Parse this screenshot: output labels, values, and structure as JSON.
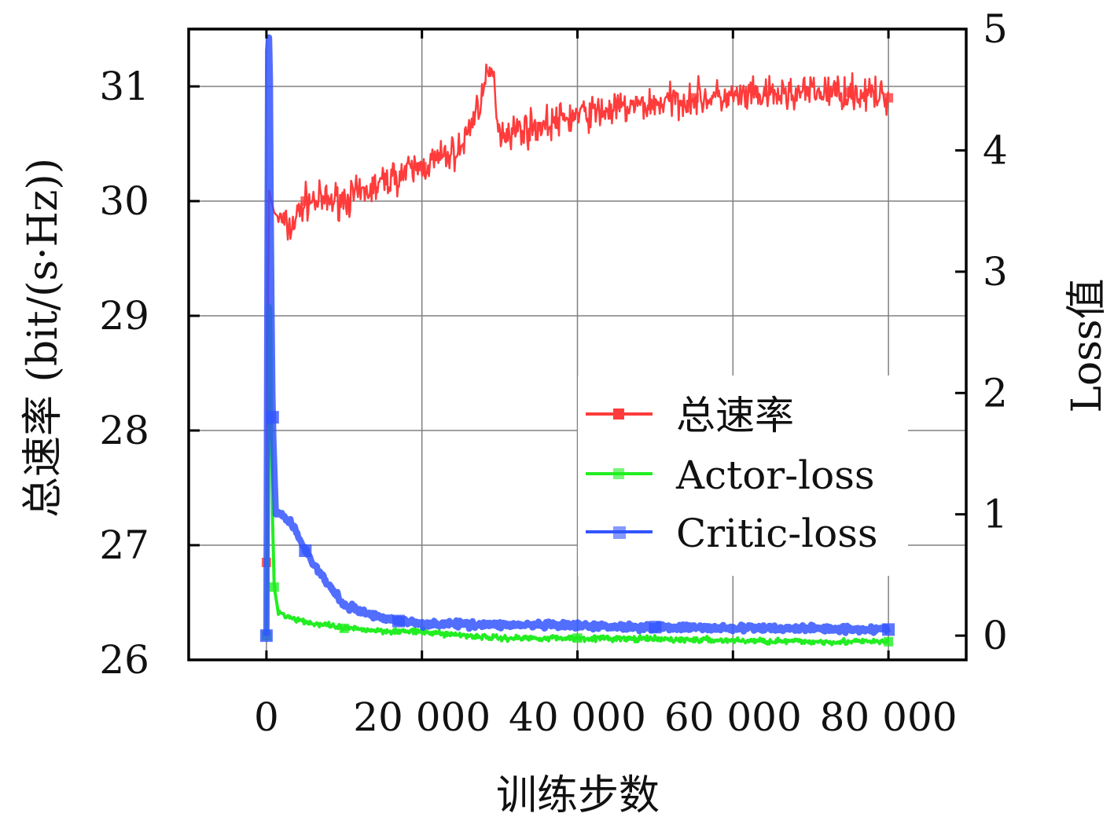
{
  "chart_data": {
    "type": "line",
    "xlabel": "训练步数",
    "ylabel_left": "总速率 (bit/(s·Hz))",
    "ylabel_right": "Loss值",
    "xlim": [
      -10000,
      90000
    ],
    "ylim_left": [
      26,
      31.5
    ],
    "ylim_right": [
      -0.2,
      5
    ],
    "x_ticks": [
      0,
      20000,
      40000,
      60000,
      80000
    ],
    "x_tick_labels": [
      "0",
      "20 000",
      "40 000",
      "60 000",
      "80 000"
    ],
    "y_ticks_left": [
      26,
      27,
      28,
      29,
      30,
      31
    ],
    "y_ticks_right": [
      0,
      1,
      2,
      3,
      4,
      5
    ],
    "grid": true,
    "legend_position": "center-right",
    "series": [
      {
        "name": "总速率",
        "axis": "left",
        "color": "#ff3b3b",
        "marker": "square",
        "points": [
          [
            0,
            26.85
          ],
          [
            300,
            30.1
          ],
          [
            1000,
            29.9
          ],
          [
            3000,
            29.75
          ],
          [
            5000,
            30.0
          ],
          [
            8000,
            30.0
          ],
          [
            12000,
            30.05
          ],
          [
            16000,
            30.2
          ],
          [
            20000,
            30.3
          ],
          [
            25000,
            30.45
          ],
          [
            29000,
            31.15
          ],
          [
            30000,
            30.6
          ],
          [
            35000,
            30.65
          ],
          [
            40000,
            30.75
          ],
          [
            45000,
            30.8
          ],
          [
            50000,
            30.85
          ],
          [
            55000,
            30.9
          ],
          [
            60000,
            30.9
          ],
          [
            65000,
            30.92
          ],
          [
            70000,
            30.95
          ],
          [
            75000,
            30.95
          ],
          [
            80000,
            30.9
          ]
        ]
      },
      {
        "name": "Actor-loss",
        "axis": "right",
        "color": "#22ee22",
        "marker": "square",
        "points": [
          [
            0,
            0.0
          ],
          [
            300,
            1.6
          ],
          [
            500,
            3.2
          ],
          [
            700,
            1.2
          ],
          [
            1000,
            0.4
          ],
          [
            1500,
            0.2
          ],
          [
            3000,
            0.15
          ],
          [
            6000,
            0.1
          ],
          [
            10000,
            0.06
          ],
          [
            15000,
            0.04
          ],
          [
            20000,
            0.03
          ],
          [
            30000,
            -0.02
          ],
          [
            40000,
            -0.02
          ],
          [
            50000,
            -0.03
          ],
          [
            60000,
            -0.04
          ],
          [
            70000,
            -0.05
          ],
          [
            80000,
            -0.05
          ]
        ]
      },
      {
        "name": "Critic-loss",
        "axis": "right",
        "color": "#3355ff",
        "marker": "square",
        "points": [
          [
            0,
            0.0
          ],
          [
            200,
            4.8
          ],
          [
            400,
            5.0
          ],
          [
            600,
            3.0
          ],
          [
            800,
            1.8
          ],
          [
            1200,
            1.0
          ],
          [
            2000,
            1.0
          ],
          [
            3500,
            0.9
          ],
          [
            5000,
            0.7
          ],
          [
            7000,
            0.5
          ],
          [
            10000,
            0.25
          ],
          [
            13000,
            0.18
          ],
          [
            17000,
            0.12
          ],
          [
            20000,
            0.1
          ],
          [
            30000,
            0.09
          ],
          [
            40000,
            0.08
          ],
          [
            50000,
            0.07
          ],
          [
            60000,
            0.06
          ],
          [
            70000,
            0.06
          ],
          [
            80000,
            0.05
          ]
        ]
      }
    ]
  }
}
